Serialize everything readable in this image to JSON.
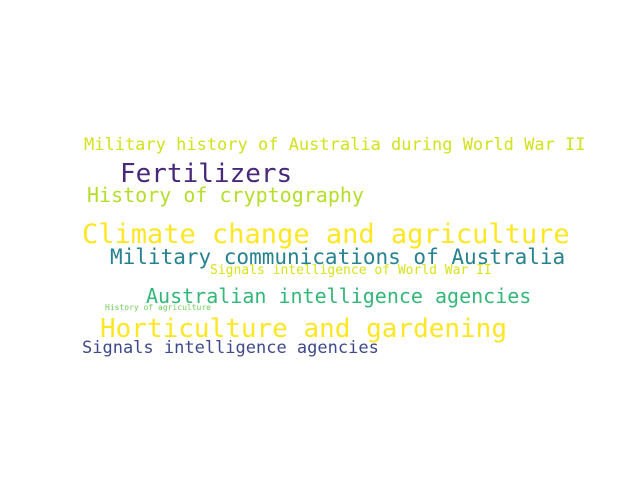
{
  "word_cloud": {
    "words": [
      {
        "text": "Military history of Australia during World War II",
        "color": "#d2e21b"
      },
      {
        "text": "Fertilizers",
        "color": "#482878"
      },
      {
        "text": "History of cryptography",
        "color": "#b5de2b"
      },
      {
        "text": "Climate change and agriculture",
        "color": "#fde725"
      },
      {
        "text": "Military communications of Australia",
        "color": "#26828e"
      },
      {
        "text": "Signals intelligence of World War II",
        "color": "#d8e219"
      },
      {
        "text": "Australian intelligence agencies",
        "color": "#35b779"
      },
      {
        "text": "History of agriculture",
        "color": "#6ece58"
      },
      {
        "text": "Horticulture and gardening",
        "color": "#fde725"
      },
      {
        "text": "Signals intelligence agencies",
        "color": "#3e4989"
      }
    ]
  }
}
